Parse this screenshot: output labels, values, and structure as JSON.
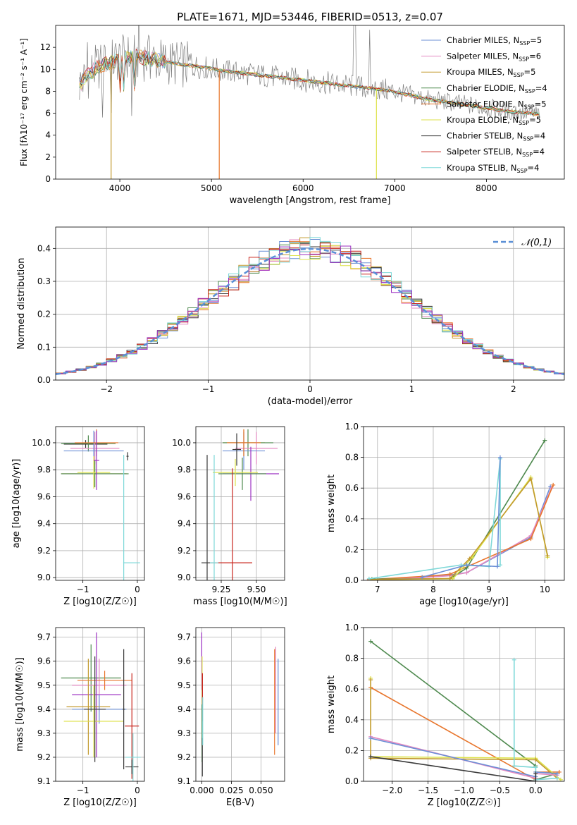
{
  "figure": {
    "title": "PLATE=1671, MJD=53446, FIBERID=0513, z=0.07"
  },
  "chart_data": [
    {
      "id": "spectrum",
      "type": "line",
      "xlabel": "wavelength [Angstrom, rest frame]",
      "ylabel": "Flux [f_λ 10^-17 erg cm^-2 s^-1 A^-1]",
      "xlim": [
        3300,
        8850
      ],
      "ylim": [
        0,
        14
      ],
      "xticks": [
        4000,
        5000,
        6000,
        7000,
        8000
      ],
      "yticks": [
        0,
        2,
        4,
        6,
        8,
        10,
        12
      ],
      "grid": false,
      "legend_position": "top-right",
      "data_range": [
        3560,
        8580
      ],
      "continuum": {
        "x": [
          3560,
          3650,
          3750,
          3900,
          4000,
          4150,
          4300,
          4500,
          4700,
          4900,
          5100,
          5400,
          5700,
          6000,
          6300,
          6600,
          6900,
          7200,
          7400,
          7600,
          7900,
          8200,
          8580
        ],
        "y": [
          8.6,
          9.4,
          10.2,
          10.6,
          11.0,
          11.2,
          11.0,
          10.7,
          10.4,
          10.2,
          9.9,
          9.6,
          9.3,
          9.0,
          8.7,
          8.4,
          8.1,
          7.6,
          7.2,
          7.0,
          6.6,
          6.2,
          5.9
        ]
      },
      "series": [
        {
          "name": "Chabrier MILES",
          "nssp": "5",
          "color": "#6b8fd6"
        },
        {
          "name": "Salpeter MILES",
          "nssp": "6",
          "color": "#e389c1"
        },
        {
          "name": "Kroupa MILES",
          "nssp": "5",
          "color": "#c29a2e"
        },
        {
          "name": "Chabrier ELODIE",
          "nssp": "4",
          "color": "#4f8a4f"
        },
        {
          "name": "Salpeter ELODIE",
          "nssp": "5",
          "color": "#e8762d"
        },
        {
          "name": "Kroupa ELODIE",
          "nssp": "5",
          "color": "#dde24a"
        },
        {
          "name": "Chabrier STELIB",
          "nssp": "4",
          "color": "#3a3a3a"
        },
        {
          "name": "Salpeter STELIB",
          "nssp": "4",
          "color": "#c8261e"
        },
        {
          "name": "Kroupa STELIB",
          "nssp": "4",
          "color": "#7fd8d8"
        }
      ],
      "spikes": [
        {
          "x": 3905,
          "color": "#c29a2e"
        },
        {
          "x": 5085,
          "color": "#e8762d"
        },
        {
          "x": 6800,
          "color": "#dde24a"
        }
      ]
    },
    {
      "id": "residuals",
      "type": "histogram",
      "xlabel": "(data-model)/error",
      "ylabel": "Normed distribution",
      "xlim": [
        -2.5,
        2.5
      ],
      "ylim": [
        0,
        0.465
      ],
      "xticks": [
        -2,
        -1,
        0,
        1,
        2
      ],
      "yticks": [
        0.0,
        0.1,
        0.2,
        0.3,
        0.4
      ],
      "grid": true,
      "legend_position": "top-right",
      "reference": {
        "name": "𝒩(0,1)",
        "mean": 0,
        "sigma": 1,
        "color": "#5a8fd6"
      },
      "bin_width": 0.1,
      "colors": [
        "#6b8fd6",
        "#e389c1",
        "#c29a2e",
        "#4f8a4f",
        "#e8762d",
        "#dde24a",
        "#3a3a3a",
        "#c8261e",
        "#7fd8d8",
        "#9b2fc2"
      ]
    },
    {
      "id": "age-vs-Z",
      "type": "scatter",
      "xlabel": "Z [log10(Z/Z☉)]",
      "ylabel": "age [log10(age/yr)]",
      "xlim": [
        -1.5,
        0.13
      ],
      "ylim": [
        8.98,
        10.12
      ],
      "xticks": [
        -1,
        0
      ],
      "yticks": [
        9.0,
        9.2,
        9.4,
        9.6,
        9.8,
        10.0
      ],
      "grid": true,
      "points": [
        {
          "x": -0.95,
          "y": 9.99,
          "xerr": 0.4,
          "yerr": 0.03,
          "color": "#3a3a3a"
        },
        {
          "x": -0.9,
          "y": 9.995,
          "xerr": 0.5,
          "yerr": 0.06,
          "color": "#4f8a4f"
        },
        {
          "x": -0.78,
          "y": 9.96,
          "xerr": 0.45,
          "yerr": 0.12,
          "color": "#e389c1"
        },
        {
          "x": -0.8,
          "y": 9.94,
          "xerr": 0.55,
          "yerr": 0.15,
          "color": "#6b8fd6"
        },
        {
          "x": -0.75,
          "y": 10.0,
          "xerr": 0.4,
          "yerr": 0.1,
          "color": "#e8762d"
        },
        {
          "x": -0.8,
          "y": 9.77,
          "xerr": 0.6,
          "yerr": 0.1,
          "color": "#c29a2e"
        },
        {
          "x": -0.78,
          "y": 9.77,
          "xerr": 0.62,
          "yerr": 0.1,
          "color": "#4f8a4f"
        },
        {
          "x": -0.8,
          "y": 9.78,
          "xerr": 0.3,
          "yerr": 0.12,
          "color": "#dde24a"
        },
        {
          "x": -0.18,
          "y": 9.9,
          "xerr": 0.02,
          "yerr": 0.03,
          "color": "#3a3a3a"
        },
        {
          "x": -0.25,
          "y": 9.11,
          "xerr": 0.01,
          "yerr": 0.8,
          "color": "#7fd8d8"
        },
        {
          "x": -0.1,
          "y": 9.11,
          "xerr": 0.15,
          "yerr": 0.0,
          "color": "#7fd8d8"
        },
        {
          "x": -0.75,
          "y": 9.87,
          "xerr": 0.05,
          "yerr": 0.22,
          "color": "#9b2fc2"
        }
      ]
    },
    {
      "id": "age-vs-mass",
      "type": "scatter",
      "xlabel": "mass [log10(M/M☉)]",
      "ylabel": "",
      "xlim": [
        9.07,
        9.7
      ],
      "ylim": [
        8.98,
        10.12
      ],
      "xticks": [
        9.25,
        9.5
      ],
      "xticklabels": [
        "9.25",
        "9.50"
      ],
      "yticks": [
        9.0,
        9.2,
        9.4,
        9.6,
        9.8,
        10.0
      ],
      "grid": true,
      "points": [
        {
          "x": 9.41,
          "y": 10.0,
          "xerr": 0.15,
          "yerr": 0.1,
          "color": "#c29a2e"
        },
        {
          "x": 9.44,
          "y": 10.0,
          "xerr": 0.18,
          "yerr": 0.1,
          "color": "#4f8a4f"
        },
        {
          "x": 9.5,
          "y": 9.96,
          "xerr": 0.15,
          "yerr": 0.12,
          "color": "#e389c1"
        },
        {
          "x": 9.41,
          "y": 9.94,
          "xerr": 0.15,
          "yerr": 0.14,
          "color": "#6b8fd6"
        },
        {
          "x": 9.41,
          "y": 10.0,
          "xerr": 0.12,
          "yerr": 0.1,
          "color": "#e8762d"
        },
        {
          "x": 9.46,
          "y": 9.77,
          "xerr": 0.2,
          "yerr": 0.2,
          "color": "#9b2fc2"
        },
        {
          "x": 9.4,
          "y": 9.77,
          "xerr": 0.17,
          "yerr": 0.12,
          "color": "#4f8a4f"
        },
        {
          "x": 9.35,
          "y": 9.78,
          "xerr": 0.16,
          "yerr": 0.1,
          "color": "#dde24a"
        },
        {
          "x": 9.33,
          "y": 9.11,
          "xerr": 0.14,
          "yerr": 0.7,
          "color": "#c8261e"
        },
        {
          "x": 9.15,
          "y": 9.11,
          "xerr": 0.04,
          "yerr": 0.8,
          "color": "#3a3a3a"
        },
        {
          "x": 9.2,
          "y": 9.11,
          "xerr": 0.03,
          "yerr": 0.8,
          "color": "#7fd8d8"
        },
        {
          "x": 9.36,
          "y": 9.95,
          "xerr": 0.03,
          "yerr": 0.12,
          "color": "#3a3a3a"
        }
      ]
    },
    {
      "id": "weight-vs-age",
      "type": "line",
      "xlabel": "age [log10(age/yr)]",
      "ylabel": "mass weight",
      "xlim": [
        6.75,
        10.35
      ],
      "ylim": [
        0,
        1
      ],
      "xticks": [
        7,
        8,
        9,
        10
      ],
      "yticks": [
        0.0,
        0.2,
        0.4,
        0.6,
        0.8,
        1.0
      ],
      "grid": true,
      "series": [
        {
          "color": "#6b8fd6",
          "x": [
            6.85,
            7.8,
            8.3,
            8.6,
            9.75,
            10.1
          ],
          "y": [
            0.005,
            0.02,
            0.035,
            0.05,
            0.28,
            0.61
          ]
        },
        {
          "color": "#e389c1",
          "x": [
            6.85,
            7.8,
            8.3,
            8.6,
            9.75,
            10.12
          ],
          "y": [
            0.006,
            0.018,
            0.03,
            0.05,
            0.29,
            0.6
          ]
        },
        {
          "color": "#e8762d",
          "x": [
            6.85,
            8.0,
            8.3,
            9.75,
            10.15
          ],
          "y": [
            0.005,
            0.03,
            0.04,
            0.27,
            0.62
          ]
        },
        {
          "color": "#4f8a4f",
          "x": [
            6.9,
            8.3,
            8.6,
            10.0
          ],
          "y": [
            0.008,
            0.01,
            0.08,
            0.91
          ]
        },
        {
          "color": "#dde24a",
          "x": [
            6.9,
            8.35,
            8.7,
            9.75,
            10.05
          ],
          "y": [
            0.005,
            0.01,
            0.15,
            0.67,
            0.15
          ]
        },
        {
          "color": "#c29a2e",
          "x": [
            6.9,
            8.3,
            8.65,
            9.75,
            10.05
          ],
          "y": [
            0.004,
            0.012,
            0.14,
            0.66,
            0.16
          ]
        },
        {
          "color": "#7fd8d8",
          "x": [
            6.85,
            8.5,
            9.0,
            9.2,
            9.2
          ],
          "y": [
            0.01,
            0.1,
            0.09,
            0.79,
            0.1
          ]
        },
        {
          "color": "#6b8fd6",
          "x": [
            7.8,
            8.6,
            9.15,
            9.2
          ],
          "y": [
            0.02,
            0.1,
            0.09,
            0.8
          ]
        }
      ]
    },
    {
      "id": "mass-vs-Z",
      "type": "scatter",
      "xlabel": "Z [log10(Z/Z☉)]",
      "ylabel": "mass [log10(M/M☉)]",
      "xlim": [
        -1.5,
        0.13
      ],
      "ylim": [
        9.1,
        9.74
      ],
      "xticks": [
        -1,
        0
      ],
      "yticks": [
        9.1,
        9.2,
        9.3,
        9.4,
        9.5,
        9.6,
        9.7
      ],
      "grid": true,
      "points": [
        {
          "x": -0.85,
          "y": 9.53,
          "xerr": 0.55,
          "yerr": 0.14,
          "color": "#4f8a4f"
        },
        {
          "x": -0.7,
          "y": 9.5,
          "xerr": 0.5,
          "yerr": 0.11,
          "color": "#e389c1"
        },
        {
          "x": -0.6,
          "y": 9.52,
          "xerr": 0.5,
          "yerr": 0.04,
          "color": "#e8762d"
        },
        {
          "x": -0.75,
          "y": 9.46,
          "xerr": 0.45,
          "yerr": 0.26,
          "color": "#9b2fc2"
        },
        {
          "x": -0.9,
          "y": 9.41,
          "xerr": 0.4,
          "yerr": 0.2,
          "color": "#c29a2e"
        },
        {
          "x": -0.7,
          "y": 9.4,
          "xerr": 0.5,
          "yerr": 0.06,
          "color": "#6b8fd6"
        },
        {
          "x": -0.8,
          "y": 9.35,
          "xerr": 0.55,
          "yerr": 0.15,
          "color": "#dde24a"
        },
        {
          "x": -0.78,
          "y": 9.4,
          "xerr": 0.2,
          "yerr": 0.22,
          "color": "#3a3a3a"
        },
        {
          "x": -0.1,
          "y": 9.33,
          "xerr": 0.13,
          "yerr": 0.22,
          "color": "#c8261e"
        },
        {
          "x": -0.1,
          "y": 9.16,
          "xerr": 0.12,
          "yerr": 0.03,
          "color": "#3a3a3a"
        },
        {
          "x": -0.08,
          "y": 9.2,
          "xerr": 0.14,
          "yerr": 0.1,
          "color": "#7fd8d8"
        },
        {
          "x": -0.25,
          "y": 9.4,
          "xerr": 0.02,
          "yerr": 0.25,
          "color": "#3a3a3a"
        }
      ]
    },
    {
      "id": "mass-vs-ebv",
      "type": "scatter",
      "xlabel": "E(B-V)",
      "ylabel": "",
      "xlim": [
        -0.005,
        0.07
      ],
      "ylim": [
        9.1,
        9.74
      ],
      "xticks": [
        0.0,
        0.025,
        0.05
      ],
      "xticklabels": [
        "0.000",
        "0.025",
        "0.050"
      ],
      "yticks": [
        9.1,
        9.2,
        9.3,
        9.4,
        9.5,
        9.6,
        9.7
      ],
      "grid": true,
      "points": [
        {
          "x": 0.0,
          "y": 9.6,
          "xerr": 0.0,
          "yerr": 0.12,
          "color": "#9b2fc2"
        },
        {
          "x": 0.0003,
          "y": 9.52,
          "xerr": 0.0,
          "yerr": 0.1,
          "color": "#dde24a"
        },
        {
          "x": 0.0006,
          "y": 9.45,
          "xerr": 0.0,
          "yerr": 0.1,
          "color": "#c8261e"
        },
        {
          "x": 0.0002,
          "y": 9.3,
          "xerr": 0.0,
          "yerr": 0.12,
          "color": "#4f8a4f"
        },
        {
          "x": 0.0005,
          "y": 9.2,
          "xerr": 0.0,
          "yerr": 0.08,
          "color": "#3a3a3a"
        },
        {
          "x": 0.0008,
          "y": 9.35,
          "xerr": 0.0,
          "yerr": 0.1,
          "color": "#7fd8d8"
        },
        {
          "x": 0.0615,
          "y": 9.43,
          "xerr": 0.0,
          "yerr": 0.22,
          "color": "#e8762d"
        },
        {
          "x": 0.0625,
          "y": 9.48,
          "xerr": 0.0,
          "yerr": 0.18,
          "color": "#e389c1"
        },
        {
          "x": 0.0645,
          "y": 9.43,
          "xerr": 0.0,
          "yerr": 0.18,
          "color": "#6b8fd6"
        }
      ]
    },
    {
      "id": "weight-vs-Z",
      "type": "line",
      "xlabel": "Z [log10(Z/Z☉)]",
      "ylabel": "mass weight",
      "xlim": [
        -2.4,
        0.4
      ],
      "ylim": [
        0,
        1
      ],
      "xticks": [
        -2.0,
        -1.5,
        -1.0,
        -0.5,
        0.0
      ],
      "xticklabels": [
        "−2.0",
        "−1.5",
        "−1.0",
        "−0.5",
        "0.0"
      ],
      "yticks": [
        0.0,
        0.2,
        0.4,
        0.6,
        0.8,
        1.0
      ],
      "grid": true,
      "series": [
        {
          "color": "#4f8a4f",
          "x": [
            -2.3,
            0.0,
            0.0,
            0.3
          ],
          "y": [
            0.91,
            0.1,
            0.01,
            0.05
          ]
        },
        {
          "color": "#e8762d",
          "x": [
            -2.3,
            0.0,
            0.0,
            0.33
          ],
          "y": [
            0.61,
            0.01,
            0.06,
            0.06
          ]
        },
        {
          "color": "#dde24a",
          "x": [
            -2.3,
            -2.3,
            0.0,
            0.35
          ],
          "y": [
            0.67,
            0.16,
            0.15,
            0.01
          ]
        },
        {
          "color": "#c29a2e",
          "x": [
            -2.3,
            -2.3,
            0.0,
            0.3
          ],
          "y": [
            0.66,
            0.15,
            0.14,
            0.02
          ]
        },
        {
          "color": "#e389c1",
          "x": [
            -2.3,
            0.0,
            0.0,
            0.3
          ],
          "y": [
            0.29,
            0.02,
            0.05,
            0.04
          ]
        },
        {
          "color": "#6b8fd6",
          "x": [
            -2.3,
            0.0,
            0.0,
            0.3
          ],
          "y": [
            0.28,
            0.03,
            0.06,
            0.05
          ]
        },
        {
          "color": "#7fd8d8",
          "x": [
            -0.3,
            -0.3,
            0.0,
            0.0,
            0.3
          ],
          "y": [
            0.79,
            0.1,
            0.09,
            0.01,
            0.02
          ]
        },
        {
          "color": "#3a3a3a",
          "x": [
            -2.3,
            0.0,
            0.0
          ],
          "y": [
            0.16,
            0.0,
            0.05
          ]
        }
      ]
    }
  ]
}
